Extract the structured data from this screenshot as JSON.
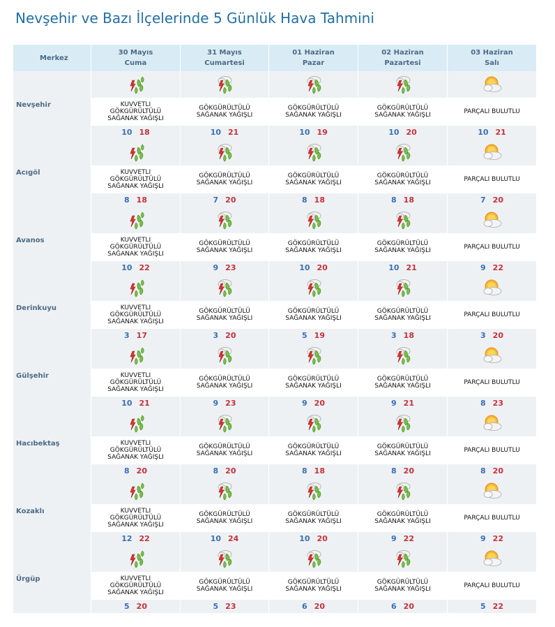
{
  "title": "Nevşehir ve Bazı İlçelerinde 5 Günlük Hava Tahmini",
  "header": {
    "merkez": "Merkez",
    "days": [
      {
        "date": "30 Mayıs",
        "weekday": "Cuma"
      },
      {
        "date": "31 Mayıs",
        "weekday": "Cumartesi"
      },
      {
        "date": "01 Haziran",
        "weekday": "Pazar"
      },
      {
        "date": "02 Haziran",
        "weekday": "Pazartesi"
      },
      {
        "date": "03 Haziran",
        "weekday": "Salı"
      }
    ]
  },
  "icons": {
    "heavy": "heavy-thunderstorm-icon",
    "storm": "thunderstorm-icon",
    "partly": "partly-cloudy-icon"
  },
  "colors": {
    "header_bg": "#d9ecf5",
    "row_shade": "#eef1f4",
    "min_temp": "#3a6fb4",
    "max_temp": "#c8313a",
    "title": "#1f6fa7"
  },
  "locations": [
    {
      "name": "Nevşehir",
      "forecasts": [
        {
          "icon": "heavy",
          "desc": "Kuvvetli Gökgürültülü Sağanak Yağışlı",
          "min": "10",
          "max": "18"
        },
        {
          "icon": "storm",
          "desc": "Gökgürültülü Sağanak Yağışlı",
          "min": "10",
          "max": "21"
        },
        {
          "icon": "storm",
          "desc": "Gökgürültülü Sağanak Yağışlı",
          "min": "10",
          "max": "19"
        },
        {
          "icon": "storm",
          "desc": "Gökgürültülü Sağanak Yağışlı",
          "min": "10",
          "max": "20"
        },
        {
          "icon": "partly",
          "desc": "Parçalı Bulutlu",
          "min": "10",
          "max": "21"
        }
      ]
    },
    {
      "name": "Acıgöl",
      "forecasts": [
        {
          "icon": "heavy",
          "desc": "Kuvvetli Gökgürültülü Sağanak Yağışlı",
          "min": "8",
          "max": "18"
        },
        {
          "icon": "storm",
          "desc": "Gökgürültülü Sağanak Yağışlı",
          "min": "7",
          "max": "20"
        },
        {
          "icon": "storm",
          "desc": "Gökgürültülü Sağanak Yağışlı",
          "min": "8",
          "max": "18"
        },
        {
          "icon": "storm",
          "desc": "Gökgürültülü Sağanak Yağışlı",
          "min": "8",
          "max": "18"
        },
        {
          "icon": "partly",
          "desc": "Parçalı Bulutlu",
          "min": "7",
          "max": "20"
        }
      ]
    },
    {
      "name": "Avanos",
      "forecasts": [
        {
          "icon": "heavy",
          "desc": "Kuvvetli Gökgürültülü Sağanak Yağışlı",
          "min": "10",
          "max": "22"
        },
        {
          "icon": "storm",
          "desc": "Gökgürültülü Sağanak Yağışlı",
          "min": "9",
          "max": "23"
        },
        {
          "icon": "storm",
          "desc": "Gökgürültülü Sağanak Yağışlı",
          "min": "10",
          "max": "20"
        },
        {
          "icon": "storm",
          "desc": "Gökgürültülü Sağanak Yağışlı",
          "min": "10",
          "max": "21"
        },
        {
          "icon": "partly",
          "desc": "Parçalı Bulutlu",
          "min": "9",
          "max": "22"
        }
      ]
    },
    {
      "name": "Derinkuyu",
      "forecasts": [
        {
          "icon": "heavy",
          "desc": "Kuvvetli Gökgürültülü Sağanak Yağışlı",
          "min": "3",
          "max": "17"
        },
        {
          "icon": "storm",
          "desc": "Gökgürültülü Sağanak Yağışlı",
          "min": "3",
          "max": "20"
        },
        {
          "icon": "storm",
          "desc": "Gökgürültülü Sağanak Yağışlı",
          "min": "5",
          "max": "19"
        },
        {
          "icon": "storm",
          "desc": "Gökgürültülü Sağanak Yağışlı",
          "min": "3",
          "max": "18"
        },
        {
          "icon": "partly",
          "desc": "Parçalı Bulutlu",
          "min": "3",
          "max": "20"
        }
      ]
    },
    {
      "name": "Gülşehir",
      "forecasts": [
        {
          "icon": "heavy",
          "desc": "Kuvvetli Gökgürültülü Sağanak Yağışlı",
          "min": "10",
          "max": "21"
        },
        {
          "icon": "storm",
          "desc": "Gökgürültülü Sağanak Yağışlı",
          "min": "9",
          "max": "23"
        },
        {
          "icon": "storm",
          "desc": "Gökgürültülü Sağanak Yağışlı",
          "min": "9",
          "max": "20"
        },
        {
          "icon": "storm",
          "desc": "Gökgürültülü Sağanak Yağışlı",
          "min": "9",
          "max": "21"
        },
        {
          "icon": "partly",
          "desc": "Parçalı Bulutlu",
          "min": "8",
          "max": "23"
        }
      ]
    },
    {
      "name": "Hacıbektaş",
      "forecasts": [
        {
          "icon": "heavy",
          "desc": "Kuvvetli Gökgürültülü Sağanak Yağışlı",
          "min": "8",
          "max": "20"
        },
        {
          "icon": "storm",
          "desc": "Gökgürültülü Sağanak Yağışlı",
          "min": "8",
          "max": "20"
        },
        {
          "icon": "storm",
          "desc": "Gökgürültülü Sağanak Yağışlı",
          "min": "8",
          "max": "18"
        },
        {
          "icon": "storm",
          "desc": "Gökgürültülü Sağanak Yağışlı",
          "min": "8",
          "max": "20"
        },
        {
          "icon": "partly",
          "desc": "Parçalı Bulutlu",
          "min": "8",
          "max": "20"
        }
      ]
    },
    {
      "name": "Kozaklı",
      "forecasts": [
        {
          "icon": "heavy",
          "desc": "Kuvvetli Gökgürültülü Sağanak Yağışlı",
          "min": "12",
          "max": "22"
        },
        {
          "icon": "storm",
          "desc": "Gökgürültülü Sağanak Yağışlı",
          "min": "10",
          "max": "24"
        },
        {
          "icon": "storm",
          "desc": "Gökgürültülü Sağanak Yağışlı",
          "min": "10",
          "max": "20"
        },
        {
          "icon": "storm",
          "desc": "Gökgürültülü Sağanak Yağışlı",
          "min": "9",
          "max": "22"
        },
        {
          "icon": "partly",
          "desc": "Parçalı Bulutlu",
          "min": "9",
          "max": "22"
        }
      ]
    },
    {
      "name": "Ürgüp",
      "forecasts": [
        {
          "icon": "heavy",
          "desc": "Kuvvetli Gökgürültülü Sağanak Yağışlı",
          "min": "5",
          "max": "20"
        },
        {
          "icon": "storm",
          "desc": "Gökgürültülü Sağanak Yağışlı",
          "min": "5",
          "max": "23"
        },
        {
          "icon": "storm",
          "desc": "Gökgürültülü Sağanak Yağışlı",
          "min": "6",
          "max": "20"
        },
        {
          "icon": "storm",
          "desc": "Gökgürültülü Sağanak Yağışlı",
          "min": "6",
          "max": "20"
        },
        {
          "icon": "partly",
          "desc": "Parçalı Bulutlu",
          "min": "5",
          "max": "22"
        }
      ]
    }
  ]
}
